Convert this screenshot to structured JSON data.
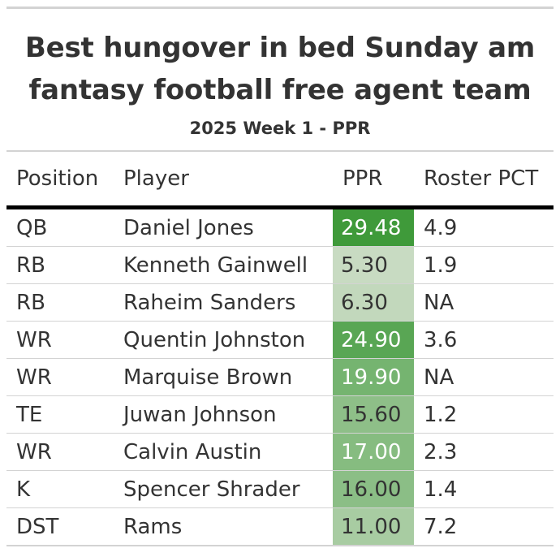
{
  "title_line1": "Best hungover in bed Sunday am",
  "title_line2": "fantasy football free agent team",
  "subtitle": "2025 Week 1 - PPR",
  "columns": {
    "position": "Position",
    "player": "Player",
    "ppr": "PPR",
    "roster_pct": "Roster PCT"
  },
  "rows": [
    {
      "position": "QB",
      "player": "Daniel Jones",
      "ppr": "29.48",
      "roster_pct": "4.9"
    },
    {
      "position": "RB",
      "player": "Kenneth Gainwell",
      "ppr": "5.30",
      "roster_pct": "1.9"
    },
    {
      "position": "RB",
      "player": "Raheim Sanders",
      "ppr": "6.30",
      "roster_pct": "NA"
    },
    {
      "position": "WR",
      "player": "Quentin Johnston",
      "ppr": "24.90",
      "roster_pct": "3.6"
    },
    {
      "position": "WR",
      "player": "Marquise Brown",
      "ppr": "19.90",
      "roster_pct": "NA"
    },
    {
      "position": "TE",
      "player": "Juwan Johnson",
      "ppr": "15.60",
      "roster_pct": "1.2"
    },
    {
      "position": "WR",
      "player": "Calvin Austin",
      "ppr": "17.00",
      "roster_pct": "2.3"
    },
    {
      "position": "K",
      "player": "Spencer Shrader",
      "ppr": "16.00",
      "roster_pct": "1.4"
    },
    {
      "position": "DST",
      "player": "Rams",
      "ppr": "11.00",
      "roster_pct": "7.2"
    }
  ],
  "colors": {
    "ppr_scale_low": "#c8dbc2",
    "ppr_scale_high": "#3f9a3a",
    "header_rule": "#000000",
    "row_divider": "#d3d3d3"
  }
}
